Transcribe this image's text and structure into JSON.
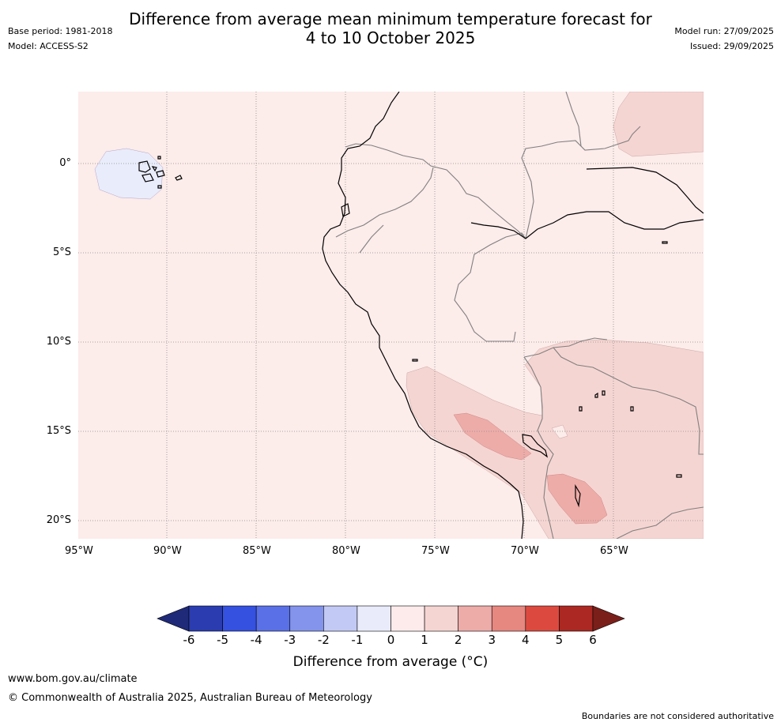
{
  "header": {
    "title_line1": "Difference from average mean minimum temperature forecast for",
    "title_line2": "4 to 10 October 2025",
    "base_period": "Base period: 1981-2018",
    "model": "Model: ACCESS-S2",
    "model_run": "Model run: 27/09/2025",
    "issued": "Issued: 29/09/2025"
  },
  "map": {
    "lat_labels": [
      "0°",
      "5°S",
      "10°S",
      "15°S",
      "20°S"
    ],
    "lon_labels": [
      "95°W",
      "90°W",
      "85°W",
      "80°W",
      "75°W",
      "70°W",
      "65°W"
    ],
    "colors": {
      "anom_0_1": "#fcecea",
      "anom_1_2": "#f5d5d2",
      "anom_2_3": "#edaca8",
      "anom_m1_0": "#e9ecfb",
      "coast": "#000000",
      "border": "#808080",
      "grid": "#8c8c8c"
    }
  },
  "colorbar": {
    "title": "Difference from average (°C)",
    "ticks": [
      "-6",
      "-5",
      "-4",
      "-3",
      "-2",
      "-1",
      "0",
      "1",
      "2",
      "3",
      "4",
      "5",
      "6"
    ],
    "colors": [
      "#1f2a78",
      "#2a3cb0",
      "#3551e0",
      "#5a70e6",
      "#8494ec",
      "#c2c9f4",
      "#e9ebfb",
      "#fcebea",
      "#f5d5d2",
      "#edaca8",
      "#e68780",
      "#dc4a3f",
      "#ac2823",
      "#7a1f1a"
    ]
  },
  "footer": {
    "url": "www.bom.gov.au/climate",
    "copyright": "© Commonwealth of Australia 2025, Australian Bureau of Meteorology",
    "note": "Boundaries are not considered authoritative"
  }
}
